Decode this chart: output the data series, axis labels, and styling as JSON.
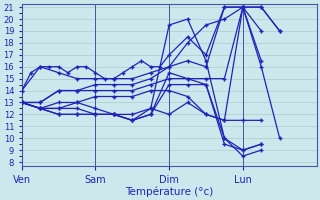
{
  "xlabel": "Température (°c)",
  "xlim": [
    0,
    96
  ],
  "ylim": [
    8,
    21
  ],
  "yticks": [
    8,
    9,
    10,
    11,
    12,
    13,
    14,
    15,
    16,
    17,
    18,
    19,
    20,
    21
  ],
  "xtick_positions": [
    0,
    24,
    48,
    72
  ],
  "xtick_labels": [
    "Ven",
    "Sam",
    "Dim",
    "Lun"
  ],
  "bg_color": "#cce8ec",
  "grid_color": "#aacccc",
  "line_color": "#2222bb",
  "marker": "+",
  "markersize": 3.5,
  "linewidth": 0.9,
  "series": [
    [
      0,
      14,
      3,
      15.5,
      6,
      16,
      9,
      16,
      12,
      16,
      15,
      15.5,
      18,
      16,
      21,
      16,
      24,
      15.5,
      27,
      15,
      30,
      15,
      33,
      15.5,
      36,
      16,
      39,
      16.5,
      42,
      16,
      45,
      16,
      48,
      17,
      54,
      18.5,
      60,
      17,
      66,
      21,
      72,
      21,
      78,
      21,
      84,
      19
    ],
    [
      0,
      14,
      6,
      16,
      12,
      15.5,
      18,
      15,
      24,
      15,
      30,
      15,
      36,
      15,
      42,
      15.5,
      48,
      16,
      54,
      18,
      60,
      19.5,
      66,
      20,
      72,
      21,
      78,
      21,
      84,
      19
    ],
    [
      0,
      13,
      6,
      13,
      12,
      14,
      18,
      14,
      24,
      14.5,
      30,
      14.5,
      36,
      14.5,
      42,
      15,
      48,
      16,
      54,
      16.5,
      60,
      16,
      66,
      21,
      72,
      21,
      78,
      16.5
    ],
    [
      0,
      13,
      6,
      13,
      12,
      14,
      18,
      14,
      24,
      14,
      30,
      14,
      36,
      14,
      42,
      14.5,
      48,
      15,
      54,
      15,
      60,
      15,
      66,
      15,
      72,
      21,
      78,
      19
    ],
    [
      0,
      13,
      6,
      12.5,
      12,
      13,
      18,
      13,
      24,
      13.5,
      30,
      13.5,
      36,
      13.5,
      42,
      14,
      48,
      14,
      54,
      13.5,
      60,
      12,
      66,
      11.5,
      72,
      21,
      78,
      16,
      84,
      10
    ],
    [
      0,
      13,
      6,
      12.5,
      12,
      12.5,
      18,
      13,
      24,
      12.5,
      30,
      12,
      36,
      12,
      42,
      12.5,
      48,
      19.5,
      54,
      20,
      60,
      16.5,
      66,
      10,
      72,
      9,
      78,
      9.5
    ],
    [
      0,
      13,
      6,
      12.5,
      12,
      12.5,
      18,
      12.5,
      24,
      12,
      30,
      12,
      36,
      11.5,
      42,
      12,
      48,
      15.5,
      54,
      15,
      60,
      14.5,
      66,
      9.5,
      72,
      9,
      78,
      9.5
    ],
    [
      0,
      13,
      6,
      12.5,
      12,
      12,
      18,
      12,
      24,
      12,
      30,
      12,
      36,
      11.5,
      42,
      12,
      48,
      14.5,
      54,
      14.5,
      60,
      14.5,
      66,
      10,
      72,
      8.5,
      78,
      9
    ],
    [
      0,
      13,
      6,
      12.5,
      12,
      12,
      18,
      12,
      24,
      12,
      30,
      12,
      36,
      11.5,
      42,
      12.5,
      48,
      12,
      54,
      13,
      60,
      12,
      66,
      11.5,
      72,
      11.5,
      78,
      11.5
    ]
  ]
}
